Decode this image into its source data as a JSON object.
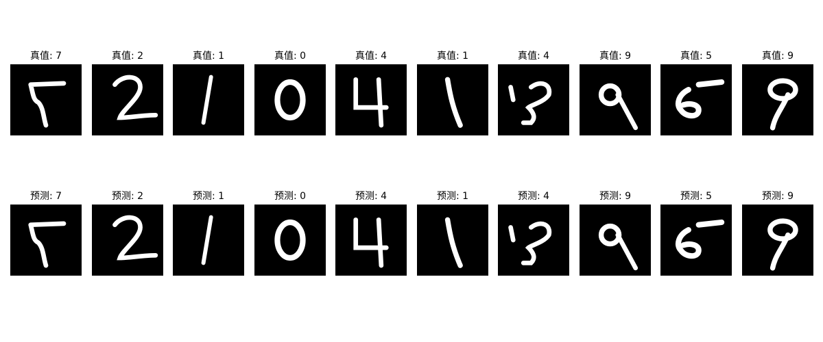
{
  "figure": {
    "rows": [
      {
        "row_label": "true",
        "label_prefix": "真值:",
        "items": [
          {
            "title": "真值: 7",
            "digit": "7"
          },
          {
            "title": "真值: 2",
            "digit": "2"
          },
          {
            "title": "真值: 1",
            "digit": "1"
          },
          {
            "title": "真值: 0",
            "digit": "0"
          },
          {
            "title": "真值: 4",
            "digit": "4"
          },
          {
            "title": "真值: 1",
            "digit": "1"
          },
          {
            "title": "真值: 4",
            "digit": "4"
          },
          {
            "title": "真值: 9",
            "digit": "9"
          },
          {
            "title": "真值: 5",
            "digit": "5"
          },
          {
            "title": "真值: 9",
            "digit": "9"
          }
        ]
      },
      {
        "row_label": "predicted",
        "label_prefix": "预测:",
        "items": [
          {
            "title": "预测: 7",
            "digit": "7"
          },
          {
            "title": "预测: 2",
            "digit": "2"
          },
          {
            "title": "预测: 1",
            "digit": "1"
          },
          {
            "title": "预测: 0",
            "digit": "0"
          },
          {
            "title": "预测: 4",
            "digit": "4"
          },
          {
            "title": "预测: 1",
            "digit": "1"
          },
          {
            "title": "预测: 4",
            "digit": "4"
          },
          {
            "title": "预测: 9",
            "digit": "9"
          },
          {
            "title": "预测: 5",
            "digit": "5"
          },
          {
            "title": "预测: 9",
            "digit": "9"
          }
        ]
      }
    ],
    "colors": {
      "image_background": "#000000",
      "stroke": "#ffffff"
    }
  }
}
